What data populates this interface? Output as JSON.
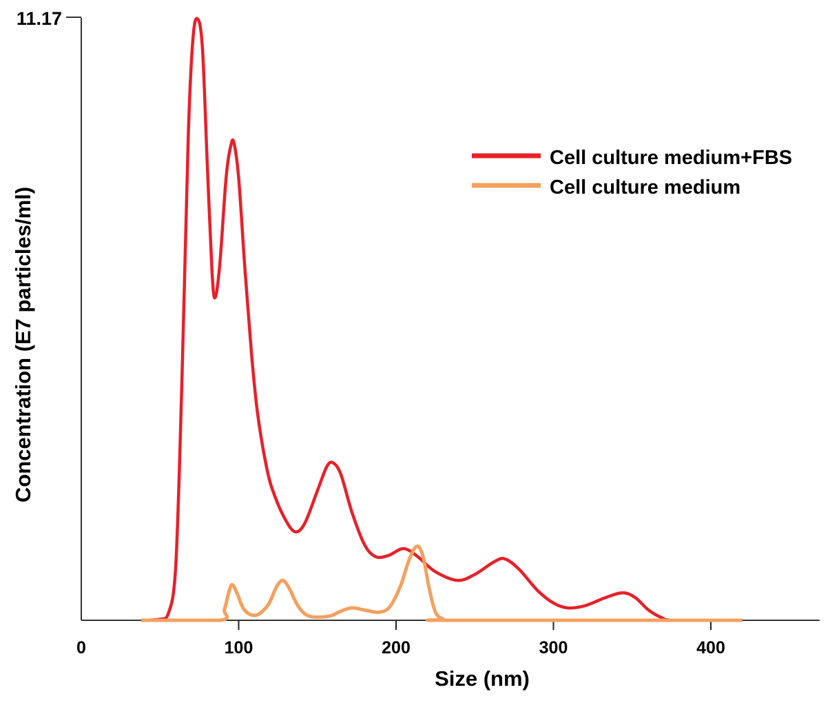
{
  "chart_data": {
    "type": "line",
    "title": "",
    "xlabel": "Size (nm)",
    "ylabel": "Concentration (E7 particles/ml)",
    "xlim": [
      0,
      470
    ],
    "ylim": [
      0,
      11.17
    ],
    "x_ticks": [
      "0",
      "100",
      "200",
      "300",
      "400"
    ],
    "y_ticks": [
      "11.17"
    ],
    "grid": false,
    "legend_position": "top-right",
    "series": [
      {
        "name": "Cell culture medium+FBS",
        "color": "#e8202a",
        "points": [
          [
            38,
            0
          ],
          [
            50,
            0.02
          ],
          [
            55,
            0.1
          ],
          [
            60,
            1.0
          ],
          [
            64,
            4.5
          ],
          [
            68,
            9.0
          ],
          [
            71,
            10.8
          ],
          [
            74,
            11.15
          ],
          [
            77,
            10.6
          ],
          [
            80,
            8.5
          ],
          [
            83,
            6.5
          ],
          [
            85,
            5.98
          ],
          [
            88,
            6.6
          ],
          [
            92,
            8.2
          ],
          [
            95,
            8.8
          ],
          [
            97,
            8.85
          ],
          [
            100,
            8.2
          ],
          [
            104,
            6.5
          ],
          [
            108,
            5.0
          ],
          [
            112,
            3.84
          ],
          [
            118,
            2.8
          ],
          [
            123,
            2.3
          ],
          [
            130,
            1.85
          ],
          [
            136,
            1.64
          ],
          [
            142,
            1.8
          ],
          [
            150,
            2.4
          ],
          [
            156,
            2.85
          ],
          [
            160,
            2.92
          ],
          [
            165,
            2.7
          ],
          [
            172,
            2.0
          ],
          [
            180,
            1.4
          ],
          [
            187,
            1.18
          ],
          [
            195,
            1.2
          ],
          [
            203,
            1.32
          ],
          [
            208,
            1.3
          ],
          [
            215,
            1.15
          ],
          [
            225,
            0.9
          ],
          [
            239,
            0.74
          ],
          [
            250,
            0.85
          ],
          [
            262,
            1.08
          ],
          [
            269,
            1.14
          ],
          [
            278,
            0.95
          ],
          [
            290,
            0.55
          ],
          [
            300,
            0.32
          ],
          [
            309,
            0.23
          ],
          [
            320,
            0.27
          ],
          [
            333,
            0.42
          ],
          [
            344,
            0.51
          ],
          [
            352,
            0.42
          ],
          [
            360,
            0.2
          ],
          [
            368,
            0.06
          ],
          [
            377,
            0
          ],
          [
            420,
            0
          ]
        ]
      },
      {
        "name": "Cell culture medium",
        "color": "#f4a060",
        "points": [
          [
            38,
            0
          ],
          [
            88,
            0
          ],
          [
            91,
            0.2
          ],
          [
            94,
            0.55
          ],
          [
            96,
            0.66
          ],
          [
            99,
            0.5
          ],
          [
            103,
            0.22
          ],
          [
            108,
            0.1
          ],
          [
            113,
            0.12
          ],
          [
            119,
            0.3
          ],
          [
            124,
            0.62
          ],
          [
            128,
            0.74
          ],
          [
            132,
            0.6
          ],
          [
            137,
            0.3
          ],
          [
            142,
            0.12
          ],
          [
            148,
            0.06
          ],
          [
            158,
            0.08
          ],
          [
            165,
            0.17
          ],
          [
            172,
            0.23
          ],
          [
            180,
            0.19
          ],
          [
            189,
            0.15
          ],
          [
            196,
            0.25
          ],
          [
            203,
            0.65
          ],
          [
            208,
            1.1
          ],
          [
            213,
            1.37
          ],
          [
            217,
            1.2
          ],
          [
            221,
            0.6
          ],
          [
            225,
            0.15
          ],
          [
            230,
            0.02
          ],
          [
            235,
            0
          ],
          [
            420,
            0
          ]
        ]
      }
    ]
  }
}
